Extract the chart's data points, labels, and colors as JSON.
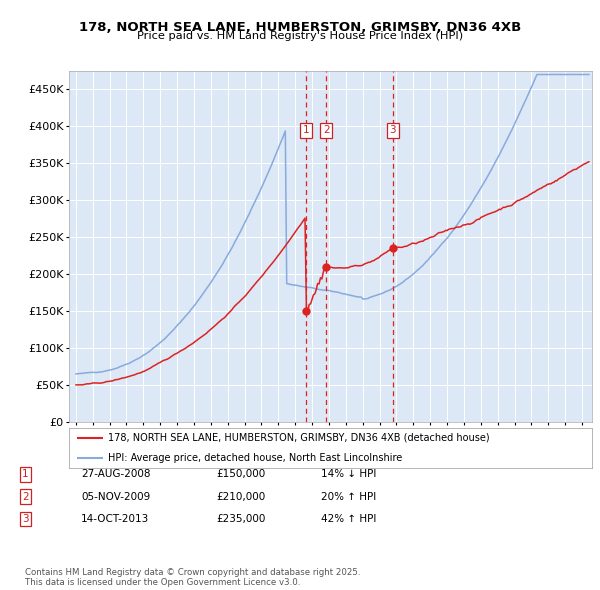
{
  "title_line1": "178, NORTH SEA LANE, HUMBERSTON, GRIMSBY, DN36 4XB",
  "title_line2": "Price paid vs. HM Land Registry's House Price Index (HPI)",
  "background_color": "#dce8f5",
  "plot_bg_color": "#dce8f5",
  "red_line_label": "178, NORTH SEA LANE, HUMBERSTON, GRIMSBY, DN36 4XB (detached house)",
  "blue_line_label": "HPI: Average price, detached house, North East Lincolnshire",
  "transactions": [
    {
      "num": 1,
      "date": "27-AUG-2008",
      "price": 150000,
      "pct": "14%",
      "dir": "↓",
      "x_year": 2008.65
    },
    {
      "num": 2,
      "date": "05-NOV-2009",
      "price": 210000,
      "pct": "20%",
      "dir": "↑",
      "x_year": 2009.85
    },
    {
      "num": 3,
      "date": "14-OCT-2013",
      "price": 235000,
      "pct": "42%",
      "dir": "↑",
      "x_year": 2013.79
    }
  ],
  "footer": "Contains HM Land Registry data © Crown copyright and database right 2025.\nThis data is licensed under the Open Government Licence v3.0.",
  "ylim": [
    0,
    475000
  ],
  "yticks": [
    0,
    50000,
    100000,
    150000,
    200000,
    250000,
    300000,
    350000,
    400000,
    450000
  ],
  "ytick_labels": [
    "£0",
    "£50K",
    "£100K",
    "£150K",
    "£200K",
    "£250K",
    "£300K",
    "£350K",
    "£400K",
    "£450K"
  ],
  "xlim_left": 1994.6,
  "xlim_right": 2025.6
}
